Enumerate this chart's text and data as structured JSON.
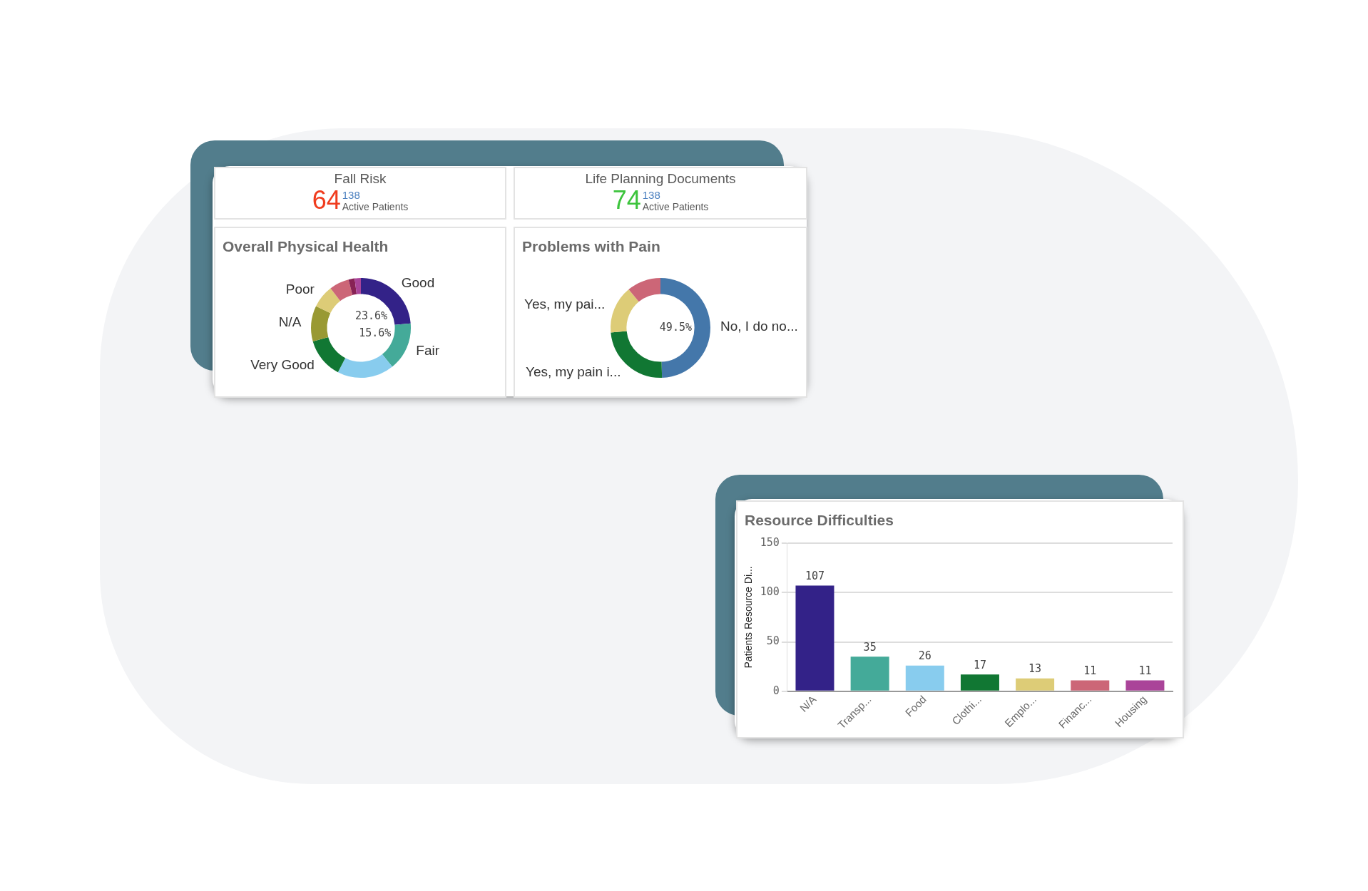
{
  "chart_data": [
    {
      "type": "other",
      "title": "Fall Risk",
      "annotations": [
        "64",
        "138",
        "Active Patients"
      ]
    },
    {
      "type": "other",
      "title": "Life Planning Documents",
      "annotations": [
        "74",
        "138",
        "Active Patients"
      ]
    },
    {
      "type": "donut",
      "title": "Overall Physical Health",
      "categories": [
        "Good",
        "Fair",
        null,
        "Very Good",
        "N/A",
        "Poor",
        null,
        null,
        null
      ],
      "values": [
        23.6,
        15.6,
        18.4,
        13,
        11.6,
        7.4,
        6.4,
        2,
        2
      ],
      "colors": [
        "#332288",
        "#44aa99",
        "#88ccee",
        "#117733",
        "#999933",
        "#ddcc77",
        "#cc6677",
        "#882255",
        "#aa4499"
      ],
      "value_labels": [
        "23.6%",
        "15.6%",
        null,
        null,
        null,
        null,
        null,
        null,
        null
      ]
    },
    {
      "type": "donut",
      "title": "Problems with Pain",
      "categories": [
        "No, I do no...",
        "Yes, my pain i...",
        "Yes, my pai...",
        null
      ],
      "values": [
        49.5,
        24,
        15.5,
        11
      ],
      "colors": [
        "#4477aa",
        "#117733",
        "#ddcc77",
        "#cc6677"
      ],
      "value_labels": [
        "49.5%",
        null,
        null,
        null
      ]
    },
    {
      "type": "bar",
      "title": "Resource Difficulties",
      "ylabel": "Patients Resource Di...",
      "categories": [
        "N/A",
        "Transp...",
        "Food",
        "Clothi...",
        "Emplo...",
        "Financ...",
        "Housing"
      ],
      "values": [
        107,
        35,
        26,
        17,
        13,
        11,
        11
      ],
      "colors": [
        "#332288",
        "#44aa99",
        "#88ccee",
        "#117733",
        "#ddcc77",
        "#cc6677",
        "#aa4499"
      ],
      "ylim": [
        0,
        150
      ],
      "yticks": [
        0,
        50,
        100,
        150
      ],
      "grid": "y",
      "data_labels": true
    }
  ]
}
